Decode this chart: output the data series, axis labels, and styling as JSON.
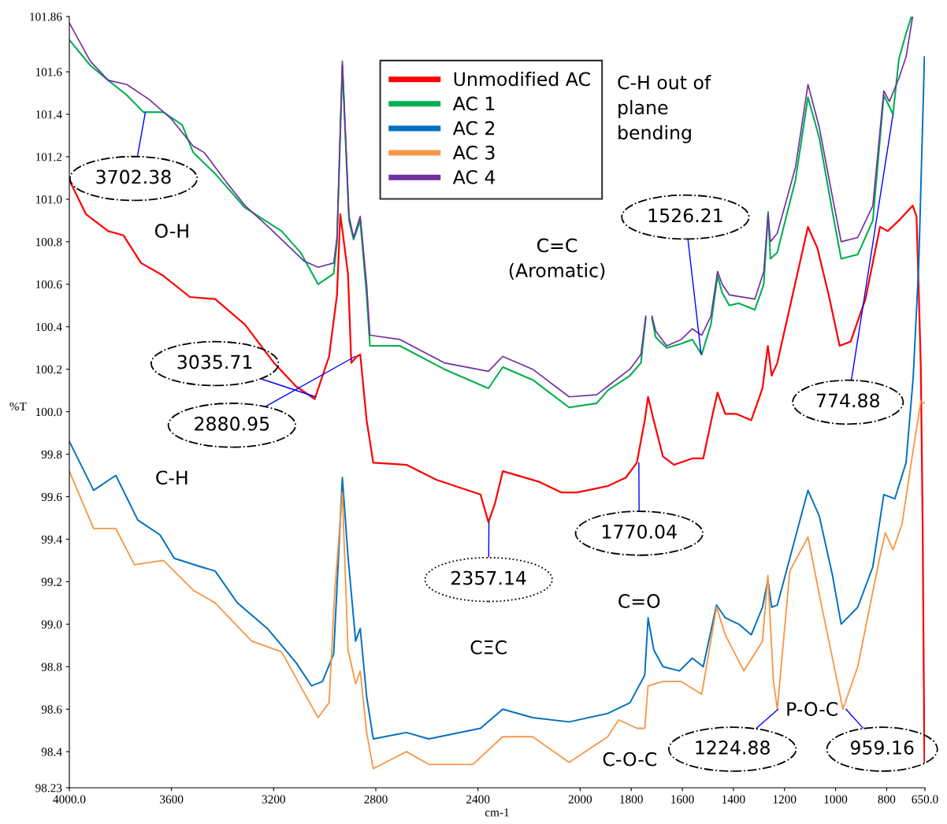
{
  "chart_data": {
    "type": "line",
    "xlabel": "cm-1",
    "ylabel": "%T",
    "xlim": [
      4000,
      650
    ],
    "ylim": [
      98.23,
      101.86
    ],
    "xticks": [
      {
        "value": 4000,
        "label": "4000.0"
      },
      3600,
      3200,
      2800,
      2400,
      2000,
      1800,
      1600,
      1400,
      1200,
      1000,
      800,
      {
        "value": 650,
        "label": "650.0"
      }
    ],
    "yticks": [
      98.23,
      98.4,
      98.6,
      98.8,
      {
        "value": 99,
        "label": "99.0"
      },
      99.2,
      99.4,
      99.6,
      99.8,
      {
        "value": 100,
        "label": "100.0"
      },
      100.2,
      100.4,
      100.6,
      100.8,
      {
        "value": 101,
        "label": "101.0"
      },
      101.2,
      101.4,
      101.6,
      101.86
    ],
    "grid": false,
    "legend": "top",
    "marker": "none",
    "line_style": "solid",
    "series": [
      {
        "name": "Unmodified AC",
        "color": "#ff0000",
        "x": [
          4000,
          3935,
          3848,
          3788,
          3719,
          3632,
          3528,
          3429,
          3312,
          3199,
          3113,
          3039,
          2983,
          2952,
          2939,
          2909,
          2896,
          2874,
          2861,
          2836,
          2810,
          2680,
          2563,
          2390,
          2359,
          2333,
          2303,
          2160,
          2074,
          2013,
          1892,
          1821,
          1778,
          1747,
          1734,
          1712,
          1676,
          1632,
          1561,
          1518,
          1481,
          1462,
          1432,
          1389,
          1330,
          1286,
          1265,
          1250,
          1228,
          1108,
          1071,
          1027,
          984,
          941,
          883,
          826,
          796,
          752,
          698,
          683,
          674,
          666,
          659,
          652
        ],
        "values": [
          101.09,
          100.93,
          100.85,
          100.83,
          100.7,
          100.64,
          100.54,
          100.53,
          100.41,
          100.23,
          100.12,
          100.06,
          100.26,
          100.55,
          100.93,
          100.65,
          100.23,
          100.26,
          100.27,
          99.96,
          99.76,
          99.75,
          99.68,
          99.61,
          99.48,
          99.57,
          99.72,
          99.67,
          99.62,
          99.62,
          99.65,
          99.69,
          99.76,
          99.96,
          100.07,
          99.96,
          99.79,
          99.75,
          99.78,
          99.78,
          99.99,
          100.09,
          99.99,
          99.99,
          99.96,
          100.11,
          100.31,
          100.17,
          100.23,
          100.87,
          100.77,
          100.55,
          100.31,
          100.33,
          100.53,
          100.87,
          100.85,
          100.9,
          100.97,
          100.92,
          100.56,
          100.2,
          99.47,
          98.35
        ]
      },
      {
        "name": "AC 1",
        "color": "#00b050",
        "x": [
          4000,
          3918,
          3848,
          3775,
          3710,
          3632,
          3558,
          3515,
          3429,
          3312,
          3169,
          3095,
          3026,
          2965,
          2952,
          2931,
          2905,
          2887,
          2861,
          2836,
          2823,
          2706,
          2532,
          2359,
          2303,
          2186,
          2043,
          1935,
          1892,
          1805,
          1762,
          1743,
          1735,
          1719,
          1704,
          1661,
          1604,
          1561,
          1524,
          1488,
          1462,
          1444,
          1416,
          1379,
          1316,
          1281,
          1264,
          1255,
          1228,
          1157,
          1108,
          1064,
          1012,
          978,
          913,
          854,
          811,
          775,
          752,
          724,
          703
        ],
        "values": [
          101.75,
          101.63,
          101.56,
          101.49,
          101.41,
          101.41,
          101.35,
          101.22,
          101.12,
          100.96,
          100.85,
          100.75,
          100.6,
          100.65,
          100.8,
          101.63,
          100.9,
          100.81,
          100.9,
          100.55,
          100.31,
          100.31,
          100.2,
          100.11,
          100.21,
          100.15,
          100.02,
          100.04,
          100.1,
          100.17,
          100.23,
          100.44,
          null,
          100.44,
          100.35,
          100.3,
          100.32,
          100.34,
          100.27,
          100.41,
          100.64,
          100.56,
          100.5,
          100.51,
          100.48,
          100.6,
          100.94,
          100.72,
          100.75,
          101.09,
          101.48,
          101.29,
          100.94,
          100.72,
          100.74,
          100.9,
          101.49,
          101.4,
          101.66,
          101.78,
          101.86
        ]
      },
      {
        "name": "AC 2",
        "color": "#0070c0",
        "x": [
          4000,
          3905,
          3818,
          3732,
          3645,
          3589,
          3485,
          3429,
          3342,
          3225,
          3113,
          3052,
          3009,
          2965,
          2944,
          2931,
          2909,
          2879,
          2861,
          2836,
          2810,
          2680,
          2593,
          2390,
          2303,
          2186,
          2043,
          1892,
          1805,
          1747,
          1734,
          1712,
          1676,
          1611,
          1561,
          1518,
          1466,
          1432,
          1379,
          1330,
          1286,
          1265,
          1250,
          1228,
          1108,
          1064,
          1012,
          978,
          913,
          854,
          811,
          768,
          724,
          696,
          674,
          652
        ],
        "values": [
          99.86,
          99.63,
          99.7,
          99.49,
          99.42,
          99.31,
          99.27,
          99.25,
          99.1,
          98.98,
          98.82,
          98.71,
          98.73,
          98.86,
          99.37,
          99.69,
          99.32,
          98.92,
          98.98,
          98.66,
          98.46,
          98.49,
          98.46,
          98.51,
          98.6,
          98.56,
          98.54,
          98.58,
          98.63,
          98.76,
          99.03,
          98.88,
          98.8,
          98.78,
          98.84,
          98.8,
          99.09,
          99.03,
          99.0,
          98.95,
          99.08,
          99.21,
          99.08,
          99.09,
          99.63,
          99.51,
          99.23,
          99.0,
          99.08,
          99.27,
          99.61,
          99.59,
          99.76,
          100.16,
          100.7,
          101.67
        ]
      },
      {
        "name": "AC 3",
        "color": "#f79646",
        "x": [
          4000,
          3905,
          3818,
          3745,
          3632,
          3515,
          3429,
          3286,
          3169,
          3082,
          3026,
          2983,
          2961,
          2931,
          2909,
          2879,
          2861,
          2836,
          2810,
          2680,
          2593,
          2420,
          2303,
          2186,
          2043,
          1892,
          1849,
          1778,
          1747,
          1734,
          1676,
          1604,
          1524,
          1466,
          1432,
          1359,
          1286,
          1265,
          1243,
          1228,
          1179,
          1108,
          1057,
          971,
          913,
          826,
          805,
          775,
          740,
          696,
          666,
          652
        ],
        "values": [
          99.72,
          99.45,
          99.45,
          99.28,
          99.3,
          99.16,
          99.1,
          98.92,
          98.87,
          98.68,
          98.56,
          98.63,
          99.15,
          99.62,
          98.88,
          98.72,
          98.78,
          98.49,
          98.32,
          98.4,
          98.34,
          98.34,
          98.47,
          98.47,
          98.35,
          98.47,
          98.55,
          98.51,
          98.51,
          98.71,
          98.73,
          98.73,
          98.67,
          99.08,
          98.95,
          98.78,
          98.92,
          99.23,
          98.73,
          98.6,
          99.25,
          99.41,
          99.1,
          98.6,
          98.8,
          99.32,
          99.43,
          99.35,
          99.47,
          99.82,
          100.05,
          100.04
        ]
      },
      {
        "name": "AC 4",
        "color": "#7030a0",
        "x": [
          4000,
          3918,
          3848,
          3775,
          3688,
          3602,
          3515,
          3472,
          3385,
          3312,
          3212,
          3082,
          3026,
          2965,
          2952,
          2931,
          2905,
          2887,
          2861,
          2836,
          2823,
          2706,
          2532,
          2359,
          2303,
          2186,
          2043,
          1935,
          1892,
          1805,
          1762,
          1743,
          1735,
          1719,
          1704,
          1661,
          1604,
          1561,
          1524,
          1488,
          1462,
          1444,
          1416,
          1316,
          1281,
          1264,
          1255,
          1228,
          1157,
          1108,
          1064,
          1012,
          978,
          913,
          854,
          811,
          789,
          752,
          724,
          698
        ],
        "values": [
          101.83,
          101.65,
          101.56,
          101.54,
          101.47,
          101.38,
          101.25,
          101.22,
          101.08,
          100.97,
          100.86,
          100.71,
          100.68,
          100.7,
          100.82,
          101.65,
          100.92,
          100.82,
          100.92,
          100.6,
          100.36,
          100.34,
          100.23,
          100.19,
          100.26,
          100.2,
          100.07,
          100.08,
          100.12,
          100.2,
          100.27,
          100.45,
          null,
          100.45,
          100.38,
          100.31,
          100.34,
          100.39,
          100.36,
          100.45,
          100.66,
          100.6,
          100.55,
          100.53,
          100.66,
          100.93,
          100.8,
          100.84,
          101.15,
          101.54,
          101.34,
          101.01,
          100.8,
          100.82,
          100.97,
          101.51,
          101.46,
          101.57,
          101.67,
          101.86
        ]
      }
    ],
    "annotations": [
      {
        "text": "3702.38",
        "x": 3702.38,
        "y": 101.41
      },
      {
        "text": "3035.71",
        "x": 3035.71,
        "y": 100.07
      },
      {
        "text": "2880.95",
        "x": 2880.95,
        "y": 100.26
      },
      {
        "text": "2357.14",
        "x": 2357.14,
        "y": 99.48
      },
      {
        "text": "1770.04",
        "x": 1770.04,
        "y": 99.76
      },
      {
        "text": "1526.21",
        "x": 1526.21,
        "y": 100.27
      },
      {
        "text": "774.88",
        "x": 774.88,
        "y": 101.4
      },
      {
        "text": "1224.88",
        "x": 1224.88,
        "y": 98.6
      },
      {
        "text": "959.16",
        "x": 959.16,
        "y": 98.6
      },
      "O-H",
      "C-H",
      "C=C\n(Aromatic)",
      "C=O",
      "CΞC",
      "C-H out of\nplane\nbending",
      "C-O-C",
      "P-O-C"
    ]
  }
}
